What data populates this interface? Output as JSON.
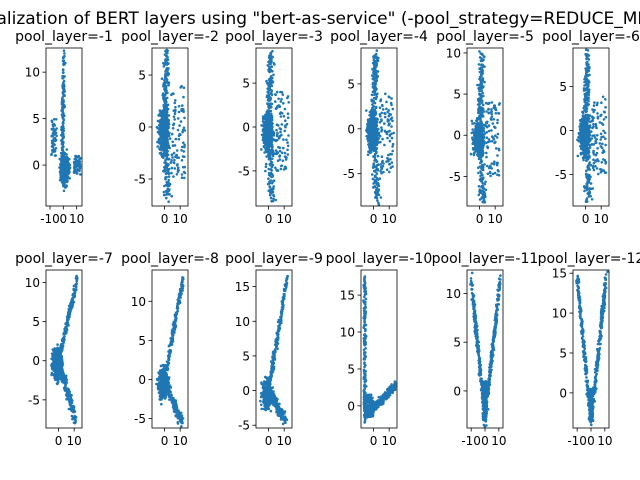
{
  "figure": {
    "suptitle": "Visualization of BERT layers using \"bert-as-service\" (-pool_strategy=REDUCE_MEAN)"
  },
  "colors": {
    "marker": "#1f77b4",
    "axis": "#000000",
    "background": "#ffffff"
  },
  "chart_data": [
    {
      "type": "scatter",
      "title": "pool_layer=-1",
      "xlim": [
        -13,
        14
      ],
      "ylim": [
        -4.4,
        12.6
      ],
      "xticks": [
        -10,
        0,
        10
      ],
      "yticks": [
        0,
        5,
        10
      ],
      "shape": "blade",
      "top": 12,
      "bottom": -4
    },
    {
      "type": "scatter",
      "title": "pool_layer=-2",
      "xlim": [
        -8,
        15
      ],
      "ylim": [
        -7.6,
        7.6
      ],
      "xticks": [
        0,
        10
      ],
      "yticks": [
        -5,
        0,
        5
      ],
      "shape": "spindle",
      "top": 7,
      "bottom": -7
    },
    {
      "type": "scatter",
      "title": "pool_layer=-3",
      "xlim": [
        -8,
        15
      ],
      "ylim": [
        -9,
        9
      ],
      "xticks": [
        0,
        10
      ],
      "yticks": [
        -5,
        0,
        5
      ],
      "shape": "spindle",
      "top": 8.5,
      "bottom": -8.5
    },
    {
      "type": "scatter",
      "title": "pool_layer=-4",
      "xlim": [
        -8,
        15
      ],
      "ylim": [
        -8.6,
        9
      ],
      "xticks": [
        0,
        10
      ],
      "yticks": [
        -5,
        0,
        5
      ],
      "shape": "spindle",
      "top": 8.5,
      "bottom": -8
    },
    {
      "type": "scatter",
      "title": "pool_layer=-5",
      "xlim": [
        -8,
        15
      ],
      "ylim": [
        -8.6,
        10.6
      ],
      "xticks": [
        0,
        10
      ],
      "yticks": [
        -5,
        0,
        5,
        10
      ],
      "shape": "spindle",
      "top": 10,
      "bottom": -8
    },
    {
      "type": "scatter",
      "title": "pool_layer=-6",
      "xlim": [
        -8,
        15
      ],
      "ylim": [
        -8.6,
        9.4
      ],
      "xticks": [
        0,
        10
      ],
      "yticks": [
        -5,
        0,
        5
      ],
      "shape": "spindle",
      "top": 9,
      "bottom": -8
    },
    {
      "type": "scatter",
      "title": "pool_layer=-7",
      "xlim": [
        -8,
        15
      ],
      "ylim": [
        -8.6,
        11.6
      ],
      "xticks": [
        0,
        10
      ],
      "yticks": [
        -5,
        0,
        5,
        10
      ],
      "shape": "fan",
      "top": 10.5,
      "bottom": -7.5
    },
    {
      "type": "scatter",
      "title": "pool_layer=-8",
      "xlim": [
        -8,
        15
      ],
      "ylim": [
        -6.2,
        14
      ],
      "xticks": [
        0,
        10
      ],
      "yticks": [
        -5,
        0,
        5,
        10
      ],
      "shape": "fan",
      "top": 13,
      "bottom": -5.5
    },
    {
      "type": "scatter",
      "title": "pool_layer=-9",
      "xlim": [
        -8,
        15
      ],
      "ylim": [
        -5.4,
        17.4
      ],
      "xticks": [
        0,
        10
      ],
      "yticks": [
        -5,
        0,
        5,
        10,
        15
      ],
      "shape": "fan",
      "top": 16.5,
      "bottom": -4.5
    },
    {
      "type": "scatter",
      "title": "pool_layer=-10",
      "xlim": [
        -8,
        15
      ],
      "ylim": [
        -3,
        18.4
      ],
      "xticks": [
        0,
        10
      ],
      "yticks": [
        0,
        5,
        10,
        15
      ],
      "shape": "L",
      "top": 17.5,
      "bottom": -2
    },
    {
      "type": "scatter",
      "title": "pool_layer=-11",
      "xlim": [
        -13,
        13
      ],
      "ylim": [
        -3.8,
        12.4
      ],
      "xticks": [
        -10,
        0,
        10
      ],
      "yticks": [
        0,
        5,
        10
      ],
      "shape": "V",
      "top": 11.5,
      "bottom": -3
    },
    {
      "type": "scatter",
      "title": "pool_layer=-12",
      "xlim": [
        -13,
        13
      ],
      "ylim": [
        -4.4,
        15.4
      ],
      "xticks": [
        -10,
        0,
        10
      ],
      "yticks": [
        0,
        5,
        10,
        15
      ],
      "shape": "V",
      "top": 14.5,
      "bottom": -3.5
    }
  ]
}
